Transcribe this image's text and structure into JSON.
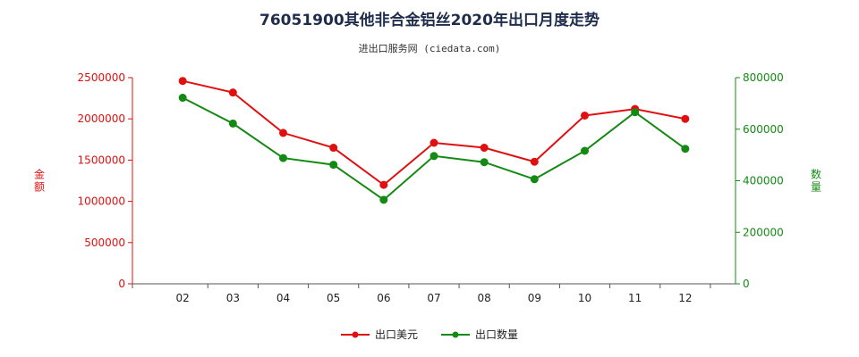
{
  "chart_data": {
    "type": "line",
    "title": "76051900其他非合金铝丝2020年出口月度走势",
    "subtitle": "进出口服务网 (ciedata.com)",
    "categories": [
      "02",
      "03",
      "04",
      "05",
      "06",
      "07",
      "08",
      "09",
      "10",
      "11",
      "12"
    ],
    "y_left": {
      "label": "金额",
      "ylim": [
        0,
        2500000
      ],
      "ticks": [
        "0",
        "500000",
        "1000000",
        "1500000",
        "2000000",
        "2500000"
      ],
      "color": "#e01010"
    },
    "y_right": {
      "label": "数量",
      "ylim": [
        0,
        800000
      ],
      "ticks": [
        "0",
        "200000",
        "400000",
        "600000",
        "800000"
      ],
      "color": "#138a13"
    },
    "series": [
      {
        "name": "出口美元",
        "axis": "left",
        "color": "#e01010",
        "values": [
          2460000,
          2320000,
          1830000,
          1650000,
          1200000,
          1710000,
          1650000,
          1480000,
          2040000,
          2120000,
          2000000
        ]
      },
      {
        "name": "出口数量",
        "axis": "right",
        "color": "#138a13",
        "values": [
          722000,
          622000,
          488000,
          462000,
          326000,
          496000,
          472000,
          406000,
          516000,
          666000,
          524000
        ]
      }
    ],
    "grid": false,
    "legend_position": "bottom"
  }
}
